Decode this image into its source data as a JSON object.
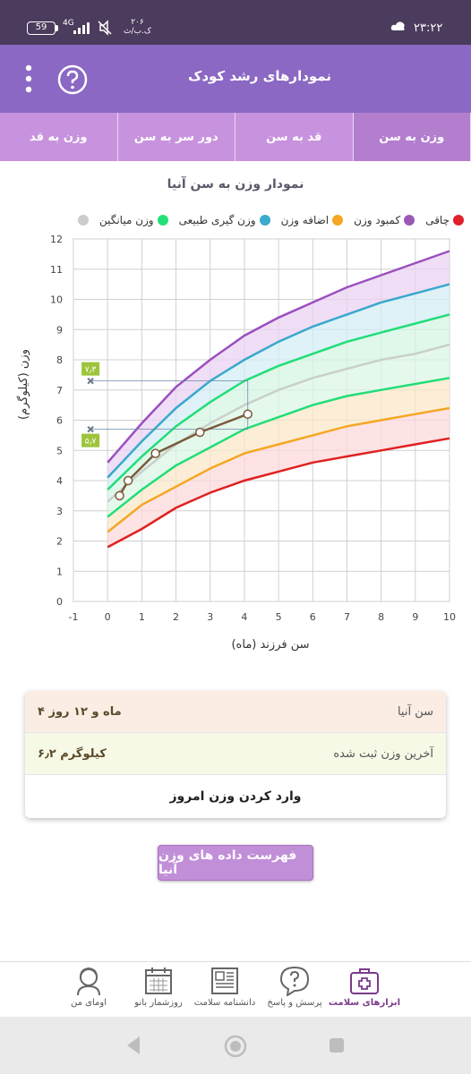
{
  "status_bar": {
    "time": "۲۳:۲۲",
    "battery": "59",
    "network": "4G",
    "speed_value": "۲۰۶",
    "speed_unit": "ک.ب/ث"
  },
  "app_bar": {
    "title": "نمودارهای رشد کودک",
    "menu_icon": "more-vert-icon",
    "help_icon": "help-circle-icon"
  },
  "tabs": [
    {
      "label": "وزن به سن",
      "active": true
    },
    {
      "label": "قد به سن",
      "active": false
    },
    {
      "label": "دور سر به سن",
      "active": false
    },
    {
      "label": "وزن به قد",
      "active": false
    }
  ],
  "chart_title": "نمودار وزن به سن آنیا",
  "legend": [
    {
      "label": "چاقی",
      "color": "#e0202a"
    },
    {
      "label": "کمبود وزن",
      "color": "#9b59b6"
    },
    {
      "label": "اضافه وزن",
      "color": "#f5a623"
    },
    {
      "label": "وزن گیری طبیعی",
      "color": "#3aaccc"
    },
    {
      "label": "وزن میانگین",
      "color": "#24e07a"
    },
    {
      "label": "",
      "color": "#cccccc"
    }
  ],
  "chart_data": {
    "type": "line",
    "xlabel": "سن فرزند (ماه)",
    "ylabel": "وزن (کیلوگرم)",
    "xlim": [
      -1,
      10
    ],
    "ylim": [
      0,
      12
    ],
    "xticks": [
      "-1",
      "0",
      "1",
      "2",
      "3",
      "4",
      "5",
      "6",
      "7",
      "8",
      "9",
      "10"
    ],
    "yticks": [
      "0",
      "1",
      "2",
      "3",
      "4",
      "5",
      "6",
      "7",
      "8",
      "9",
      "10",
      "11",
      "12"
    ],
    "x": [
      0,
      1,
      2,
      3,
      4,
      5,
      6,
      7,
      8,
      9,
      10
    ],
    "series": [
      {
        "color": "#9b4fc0",
        "values": [
          4.6,
          5.9,
          7.1,
          8.0,
          8.8,
          9.4,
          9.9,
          10.4,
          10.8,
          11.2,
          11.6
        ]
      },
      {
        "color": "#3aa8cc",
        "values": [
          4.1,
          5.3,
          6.4,
          7.3,
          8.0,
          8.6,
          9.1,
          9.5,
          9.9,
          10.2,
          10.5
        ]
      },
      {
        "color": "#22dd77",
        "values": [
          3.7,
          4.8,
          5.8,
          6.6,
          7.3,
          7.8,
          8.2,
          8.6,
          8.9,
          9.2,
          9.5
        ]
      },
      {
        "color": "#c9cfcb",
        "values": [
          3.3,
          4.3,
          5.2,
          5.9,
          6.5,
          7.0,
          7.4,
          7.7,
          8.0,
          8.2,
          8.5
        ]
      },
      {
        "color": "#22dd77",
        "values": [
          2.8,
          3.7,
          4.5,
          5.1,
          5.7,
          6.1,
          6.5,
          6.8,
          7.0,
          7.2,
          7.4
        ]
      },
      {
        "color": "#f5a623",
        "values": [
          2.3,
          3.2,
          3.8,
          4.4,
          4.9,
          5.2,
          5.5,
          5.8,
          6.0,
          6.2,
          6.4
        ]
      },
      {
        "color": "#e02020",
        "values": [
          1.8,
          2.4,
          3.1,
          3.6,
          4.0,
          4.3,
          4.6,
          4.8,
          5.0,
          5.2,
          5.4
        ]
      }
    ],
    "child_series": {
      "color": "#7a5a3a",
      "points": [
        [
          0.35,
          3.5
        ],
        [
          0.6,
          4.0
        ],
        [
          1.4,
          4.9
        ],
        [
          2.7,
          5.6
        ],
        [
          4.1,
          6.2
        ]
      ]
    },
    "markers": [
      {
        "label": "۷٫۳",
        "y": 7.3,
        "x_at": 4.1
      },
      {
        "label": "۵٫۷",
        "y": 5.7,
        "x_at": 4.1
      }
    ]
  },
  "info": {
    "age_label": "سن آنیا",
    "age_value": "۴ ماه و ۱۲ روز",
    "weight_label": "آخرین وزن ثبت شده",
    "weight_value": "۶٫۲ کیلوگرم",
    "enter_label": "وارد کردن وزن امروز"
  },
  "list_button": "فهرست داده های وزن آنیا",
  "bottom_nav": [
    {
      "label": "ابزارهای سلامت",
      "icon": "medical-kit-icon",
      "active": true
    },
    {
      "label": "پرسش و پاسخ",
      "icon": "question-bubble-icon",
      "active": false
    },
    {
      "label": "دانشنامه سلامت",
      "icon": "newspaper-icon",
      "active": false
    },
    {
      "label": "روزشمار بانو",
      "icon": "calendar-icon",
      "active": false
    },
    {
      "label": "اومای من",
      "icon": "woman-avatar-icon",
      "active": false
    }
  ]
}
